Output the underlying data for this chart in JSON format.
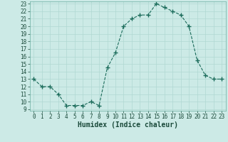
{
  "x": [
    0,
    1,
    2,
    3,
    4,
    5,
    6,
    7,
    8,
    9,
    10,
    11,
    12,
    13,
    14,
    15,
    16,
    17,
    18,
    19,
    20,
    21,
    22,
    23
  ],
  "y": [
    13,
    12,
    12,
    11,
    9.5,
    9.5,
    9.5,
    10,
    9.5,
    14.5,
    16.5,
    20,
    21,
    21.5,
    21.5,
    23,
    22.5,
    22,
    21.5,
    20,
    15.5,
    13.5,
    13,
    13
  ],
  "line_color": "#1a6b5a",
  "marker_color": "#1a6b5a",
  "bg_color": "#cceae6",
  "grid_color": "#b0d8d2",
  "xlabel": "Humidex (Indice chaleur)",
  "xlabel_fontsize": 7,
  "tick_fontsize": 5.5,
  "tick_color": "#1a4a3a",
  "ylim": [
    9,
    23
  ],
  "xlim": [
    -0.5,
    23.5
  ],
  "yticks": [
    9,
    10,
    11,
    12,
    13,
    14,
    15,
    16,
    17,
    18,
    19,
    20,
    21,
    22,
    23
  ],
  "xticks": [
    0,
    1,
    2,
    3,
    4,
    5,
    6,
    7,
    8,
    9,
    10,
    11,
    12,
    13,
    14,
    15,
    16,
    17,
    18,
    19,
    20,
    21,
    22,
    23
  ]
}
